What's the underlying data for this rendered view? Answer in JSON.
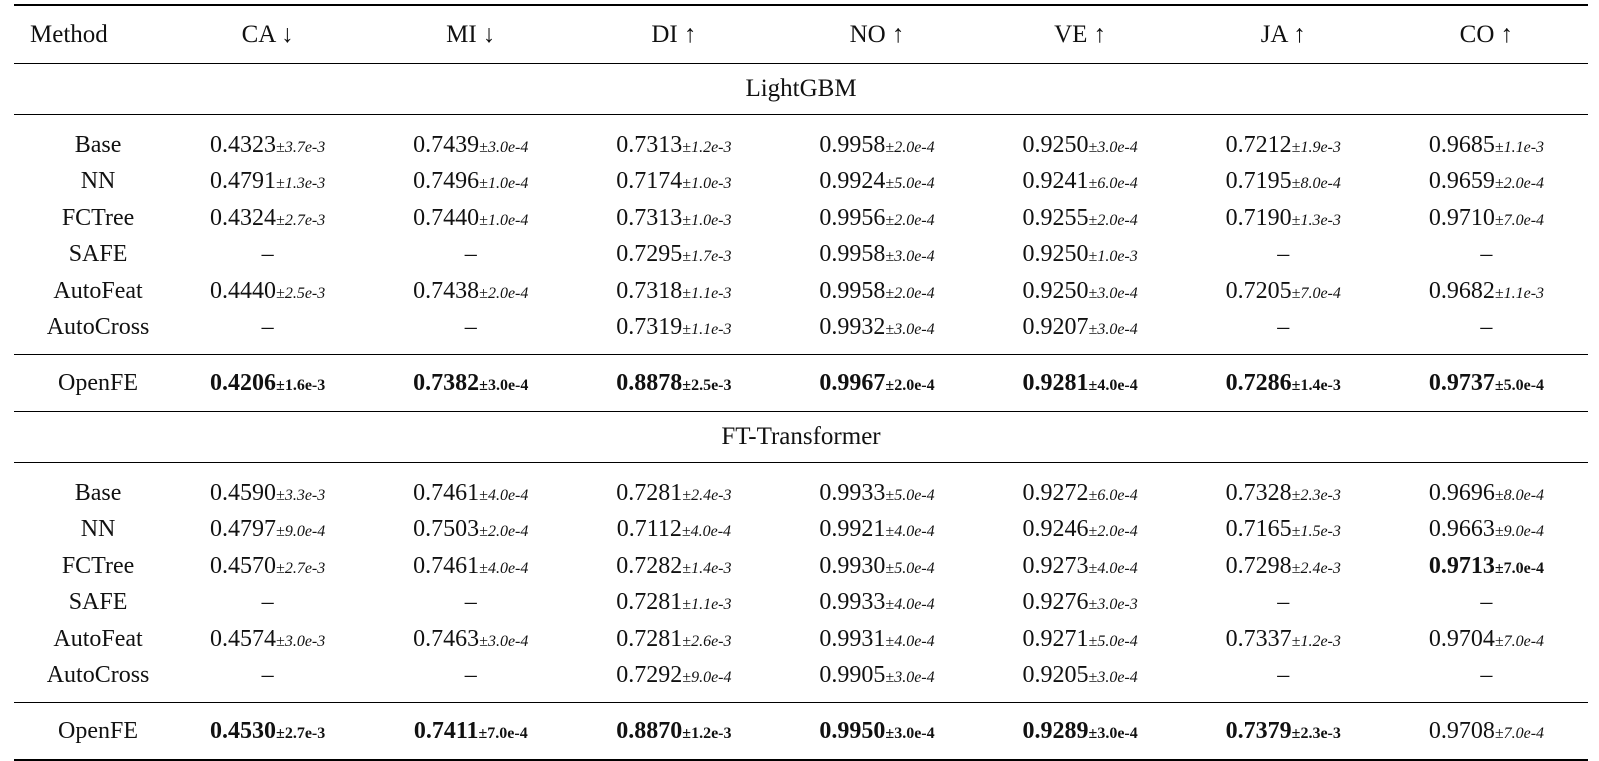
{
  "columns": [
    "Method",
    "CA ↓",
    "MI ↓",
    "DI ↑",
    "NO ↑",
    "VE ↑",
    "JA ↑",
    "CO ↑"
  ],
  "sections": [
    {
      "title": "LightGBM",
      "rows": [
        {
          "method": "Base",
          "cells": [
            [
              "0.4323",
              "±3.7e-3"
            ],
            [
              "0.7439",
              "±3.0e-4"
            ],
            [
              "0.7313",
              "±1.2e-3"
            ],
            [
              "0.9958",
              "±2.0e-4"
            ],
            [
              "0.9250",
              "±3.0e-4"
            ],
            [
              "0.7212",
              "±1.9e-3"
            ],
            [
              "0.9685",
              "±1.1e-3"
            ]
          ]
        },
        {
          "method": "NN",
          "cells": [
            [
              "0.4791",
              "±1.3e-3"
            ],
            [
              "0.7496",
              "±1.0e-4"
            ],
            [
              "0.7174",
              "±1.0e-3"
            ],
            [
              "0.9924",
              "±5.0e-4"
            ],
            [
              "0.9241",
              "±6.0e-4"
            ],
            [
              "0.7195",
              "±8.0e-4"
            ],
            [
              "0.9659",
              "±2.0e-4"
            ]
          ]
        },
        {
          "method": "FCTree",
          "cells": [
            [
              "0.4324",
              "±2.7e-3"
            ],
            [
              "0.7440",
              "±1.0e-4"
            ],
            [
              "0.7313",
              "±1.0e-3"
            ],
            [
              "0.9956",
              "±2.0e-4"
            ],
            [
              "0.9255",
              "±2.0e-4"
            ],
            [
              "0.7190",
              "±1.3e-3"
            ],
            [
              "0.9710",
              "±7.0e-4"
            ]
          ]
        },
        {
          "method": "SAFE",
          "cells": [
            [
              "–",
              ""
            ],
            [
              "–",
              ""
            ],
            [
              "0.7295",
              "±1.7e-3"
            ],
            [
              "0.9958",
              "±3.0e-4"
            ],
            [
              "0.9250",
              "±1.0e-3"
            ],
            [
              "–",
              ""
            ],
            [
              "–",
              ""
            ]
          ]
        },
        {
          "method": "AutoFeat",
          "cells": [
            [
              "0.4440",
              "±2.5e-3"
            ],
            [
              "0.7438",
              "±2.0e-4"
            ],
            [
              "0.7318",
              "±1.1e-3"
            ],
            [
              "0.9958",
              "±2.0e-4"
            ],
            [
              "0.9250",
              "±3.0e-4"
            ],
            [
              "0.7205",
              "±7.0e-4"
            ],
            [
              "0.9682",
              "±1.1e-3"
            ]
          ]
        },
        {
          "method": "AutoCross",
          "cells": [
            [
              "–",
              ""
            ],
            [
              "–",
              ""
            ],
            [
              "0.7319",
              "±1.1e-3"
            ],
            [
              "0.9932",
              "±3.0e-4"
            ],
            [
              "0.9207",
              "±3.0e-4"
            ],
            [
              "–",
              ""
            ],
            [
              "–",
              ""
            ]
          ]
        }
      ],
      "openfe": {
        "method": "OpenFE",
        "cells": [
          [
            "0.4206",
            "±1.6e-3",
            true
          ],
          [
            "0.7382",
            "±3.0e-4",
            true
          ],
          [
            "0.8878",
            "±2.5e-3",
            true
          ],
          [
            "0.9967",
            "±2.0e-4",
            true
          ],
          [
            "0.9281",
            "±4.0e-4",
            true
          ],
          [
            "0.7286",
            "±1.4e-3",
            true
          ],
          [
            "0.9737",
            "±5.0e-4",
            true
          ]
        ]
      }
    },
    {
      "title": "FT-Transformer",
      "rows": [
        {
          "method": "Base",
          "cells": [
            [
              "0.4590",
              "±3.3e-3"
            ],
            [
              "0.7461",
              "±4.0e-4"
            ],
            [
              "0.7281",
              "±2.4e-3"
            ],
            [
              "0.9933",
              "±5.0e-4"
            ],
            [
              "0.9272",
              "±6.0e-4"
            ],
            [
              "0.7328",
              "±2.3e-3"
            ],
            [
              "0.9696",
              "±8.0e-4"
            ]
          ]
        },
        {
          "method": "NN",
          "cells": [
            [
              "0.4797",
              "±9.0e-4"
            ],
            [
              "0.7503",
              "±2.0e-4"
            ],
            [
              "0.7112",
              "±4.0e-4"
            ],
            [
              "0.9921",
              "±4.0e-4"
            ],
            [
              "0.9246",
              "±2.0e-4"
            ],
            [
              "0.7165",
              "±1.5e-3"
            ],
            [
              "0.9663",
              "±9.0e-4"
            ]
          ]
        },
        {
          "method": "FCTree",
          "cells": [
            [
              "0.4570",
              "±2.7e-3"
            ],
            [
              "0.7461",
              "±4.0e-4"
            ],
            [
              "0.7282",
              "±1.4e-3"
            ],
            [
              "0.9930",
              "±5.0e-4"
            ],
            [
              "0.9273",
              "±4.0e-4"
            ],
            [
              "0.7298",
              "±2.4e-3"
            ],
            [
              "0.9713",
              "±7.0e-4",
              true
            ]
          ]
        },
        {
          "method": "SAFE",
          "cells": [
            [
              "–",
              ""
            ],
            [
              "–",
              ""
            ],
            [
              "0.7281",
              "±1.1e-3"
            ],
            [
              "0.9933",
              "±4.0e-4"
            ],
            [
              "0.9276",
              "±3.0e-3"
            ],
            [
              "–",
              ""
            ],
            [
              "–",
              ""
            ]
          ]
        },
        {
          "method": "AutoFeat",
          "cells": [
            [
              "0.4574",
              "±3.0e-3"
            ],
            [
              "0.7463",
              "±3.0e-4"
            ],
            [
              "0.7281",
              "±2.6e-3"
            ],
            [
              "0.9931",
              "±4.0e-4"
            ],
            [
              "0.9271",
              "±5.0e-4"
            ],
            [
              "0.7337",
              "±1.2e-3"
            ],
            [
              "0.9704",
              "±7.0e-4"
            ]
          ]
        },
        {
          "method": "AutoCross",
          "cells": [
            [
              "–",
              ""
            ],
            [
              "–",
              ""
            ],
            [
              "0.7292",
              "±9.0e-4"
            ],
            [
              "0.9905",
              "±3.0e-4"
            ],
            [
              "0.9205",
              "±3.0e-4"
            ],
            [
              "–",
              ""
            ],
            [
              "–",
              ""
            ]
          ]
        }
      ],
      "openfe": {
        "method": "OpenFE",
        "cells": [
          [
            "0.4530",
            "±2.7e-3",
            true
          ],
          [
            "0.7411",
            "±7.0e-4",
            true
          ],
          [
            "0.8870",
            "±1.2e-3",
            true
          ],
          [
            "0.9950",
            "±3.0e-4",
            true
          ],
          [
            "0.9289",
            "±3.0e-4",
            true
          ],
          [
            "0.7379",
            "±2.3e-3",
            true
          ],
          [
            "0.9708",
            "±7.0e-4"
          ]
        ]
      }
    }
  ]
}
